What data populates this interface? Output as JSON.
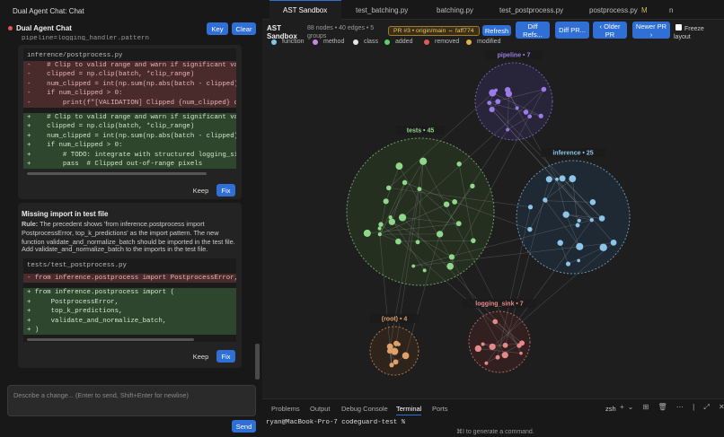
{
  "window_title": "Dual Agent Chat: Chat",
  "chat": {
    "title": "Dual Agent Chat",
    "buttons": [
      "Key",
      "Clear"
    ],
    "cut_line": "pipeline=logging_handler.pattern",
    "card1": {
      "file": "inference/postprocess.py",
      "removed": [
        "-    # Clip to valid range and warn if significant values",
        "-    clipped = np.clip(batch, *clip_range)",
        "-    num_clipped = int(np.sum(np.abs(batch - clipped) > 1",
        "-    if num_clipped > 0:",
        "-        print(f\"[VALIDATION] Clipped {num_clipped} out-o"
      ],
      "added": [
        "+    # Clip to valid range and warn if significant values",
        "+    clipped = np.clip(batch, *clip_range)",
        "+    num_clipped = int(np.sum(np.abs(batch - clipped) > 1",
        "+    if num_clipped > 0:",
        "+        # TODO: integrate with structured logging_sink/",
        "+        pass  # Clipped out-of-range pixels"
      ],
      "keep": "Keep",
      "fix": "Fix"
    },
    "issue": {
      "title": "Missing import in test file",
      "rule_label": "Rule:",
      "rule": "The precedent shows 'from inference.postprocess import PostprocessError, top_k_predictions' as the import pattern. The new function validate_and_normalize_batch should be imported in the test file.",
      "action": "Add validate_and_normalize_batch to the imports in the test file."
    },
    "card2": {
      "file": "tests/test_postprocess.py",
      "removed": [
        "- from inference.postprocess import PostprocessError, top_"
      ],
      "added": [
        "+ from inference.postprocess import (",
        "+     PostprocessError,",
        "+     top_k_predictions,",
        "+     validate_and_normalize_batch,",
        "+ )"
      ],
      "keep": "Keep",
      "fix": "Fix"
    },
    "input_placeholder": "Describe a change... (Enter to send, Shift+Enter for newline)",
    "send": "Send"
  },
  "tabs": [
    "AST Sandbox",
    "test_batching.py",
    "batching.py",
    "test_postprocess.py",
    "postprocess.py",
    "n"
  ],
  "tab_badge": "M",
  "toolbar": {
    "title": "AST Sandbox",
    "stats": "88 nodes • 40 edges • 5 groups",
    "pr": "PR #3 • origin/main ⇔ faff774",
    "buttons": [
      "Refresh",
      "Diff Refs...",
      "Diff PR...",
      "‹ Older PR",
      "Newer PR ›"
    ],
    "freeze": "Freeze layout"
  },
  "legend": [
    "function",
    "method",
    "class",
    "added",
    "removed",
    "modified"
  ],
  "groups": [
    "pipeline • 7",
    "tests • 45",
    "inference • 25",
    "(root) • 4",
    "logging_sink • 7"
  ],
  "panel": {
    "tabs": [
      "Problems",
      "Output",
      "Debug Console",
      "Terminal",
      "Ports"
    ],
    "shell": "zsh",
    "prompt": "ryan@MacBook-Pro-7 codeguard-test %",
    "hint": "⌘I to generate a command."
  }
}
